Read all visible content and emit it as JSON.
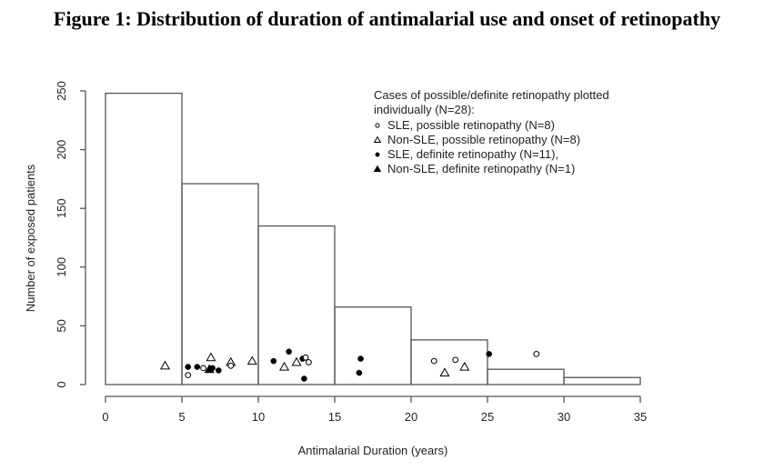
{
  "chart_data": {
    "type": "histogram",
    "title": "Figure 1: Distribution of duration of antimalarial use and onset of retinopathy",
    "xlabel": "Antimalarial Duration (years)",
    "ylabel": "Number of exposed patients",
    "xlim": [
      0,
      35
    ],
    "ylim": [
      0,
      250
    ],
    "xticks": [
      0,
      5,
      10,
      15,
      20,
      25,
      30,
      35
    ],
    "yticks": [
      0,
      50,
      100,
      150,
      200,
      250
    ],
    "grid": false,
    "bins": [
      {
        "x0": 0,
        "x1": 5,
        "count": 248
      },
      {
        "x0": 5,
        "x1": 10,
        "count": 171
      },
      {
        "x0": 10,
        "x1": 15,
        "count": 135
      },
      {
        "x0": 15,
        "x1": 20,
        "count": 66
      },
      {
        "x0": 20,
        "x1": 25,
        "count": 38
      },
      {
        "x0": 25,
        "x1": 30,
        "count": 13
      },
      {
        "x0": 30,
        "x1": 35,
        "count": 6
      }
    ],
    "legend": {
      "placement": "top-right",
      "title_lines": [
        "Cases of possible/definite retinopathy plotted",
        "individually (N=28):"
      ],
      "entries": [
        {
          "marker": "open-circle",
          "label": "SLE, possible retinopathy (N=8)"
        },
        {
          "marker": "open-triangle",
          "label": "Non-SLE, possible retinopathy (N=8)"
        },
        {
          "marker": "filled-circle",
          "label": "SLE, definite retinopathy (N=11),"
        },
        {
          "marker": "filled-triangle",
          "label": "Non-SLE, definite retinopathy (N=1)"
        }
      ]
    },
    "points": [
      {
        "x": 3.9,
        "y": 16,
        "marker": "open-triangle"
      },
      {
        "x": 5.4,
        "y": 8,
        "marker": "open-circle"
      },
      {
        "x": 5.4,
        "y": 15,
        "marker": "filled-circle"
      },
      {
        "x": 6.0,
        "y": 15,
        "marker": "filled-circle"
      },
      {
        "x": 6.4,
        "y": 14,
        "marker": "open-circle"
      },
      {
        "x": 6.8,
        "y": 13,
        "marker": "filled-triangle"
      },
      {
        "x": 6.9,
        "y": 23,
        "marker": "open-triangle"
      },
      {
        "x": 7.0,
        "y": 14,
        "marker": "filled-circle"
      },
      {
        "x": 7.4,
        "y": 12,
        "marker": "filled-circle"
      },
      {
        "x": 8.2,
        "y": 19,
        "marker": "open-triangle"
      },
      {
        "x": 8.2,
        "y": 16,
        "marker": "open-circle"
      },
      {
        "x": 9.6,
        "y": 20,
        "marker": "open-triangle"
      },
      {
        "x": 11.0,
        "y": 20,
        "marker": "filled-circle"
      },
      {
        "x": 11.7,
        "y": 15,
        "marker": "open-triangle"
      },
      {
        "x": 12.0,
        "y": 28,
        "marker": "filled-circle"
      },
      {
        "x": 12.5,
        "y": 19,
        "marker": "open-triangle"
      },
      {
        "x": 12.9,
        "y": 22,
        "marker": "filled-circle"
      },
      {
        "x": 13.1,
        "y": 23,
        "marker": "open-circle"
      },
      {
        "x": 13.3,
        "y": 19,
        "marker": "open-circle"
      },
      {
        "x": 13.0,
        "y": 5,
        "marker": "filled-circle"
      },
      {
        "x": 16.7,
        "y": 22,
        "marker": "filled-circle"
      },
      {
        "x": 16.6,
        "y": 10,
        "marker": "filled-circle"
      },
      {
        "x": 21.5,
        "y": 20,
        "marker": "open-circle"
      },
      {
        "x": 22.2,
        "y": 10,
        "marker": "open-triangle"
      },
      {
        "x": 22.9,
        "y": 21,
        "marker": "open-circle"
      },
      {
        "x": 23.5,
        "y": 15,
        "marker": "open-triangle"
      },
      {
        "x": 25.1,
        "y": 26,
        "marker": "filled-circle"
      },
      {
        "x": 28.2,
        "y": 26,
        "marker": "open-circle"
      }
    ]
  }
}
